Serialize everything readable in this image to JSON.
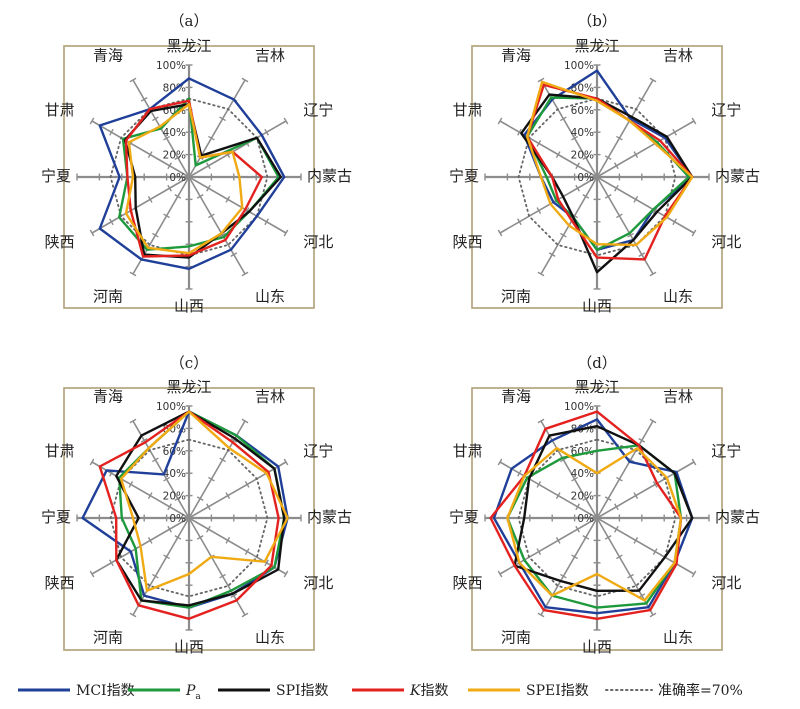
{
  "chart_data": {
    "type": "radar",
    "panels": [
      {
        "label": "（a）",
        "series_values": {
          "mci": [
            88,
            80,
            75,
            85,
            70,
            75,
            82,
            85,
            92,
            62,
            92,
            70
          ],
          "pa": [
            70,
            12,
            70,
            80,
            62,
            62,
            62,
            75,
            72,
            55,
            68,
            50
          ],
          "spi": [
            65,
            22,
            70,
            82,
            62,
            58,
            72,
            80,
            55,
            48,
            66,
            68
          ],
          "k": [
            68,
            20,
            45,
            65,
            58,
            65,
            70,
            82,
            60,
            55,
            65,
            70
          ],
          "spei": [
            65,
            20,
            45,
            45,
            55,
            58,
            68,
            73,
            65,
            50,
            62,
            52
          ]
        }
      },
      {
        "label": "（b）",
        "series_values": {
          "mci": [
            95,
            60,
            70,
            85,
            58,
            65,
            65,
            42,
            45,
            50,
            75,
            80
          ],
          "pa": [
            70,
            58,
            62,
            82,
            58,
            58,
            65,
            42,
            42,
            45,
            72,
            82
          ],
          "spi": [
            70,
            62,
            72,
            85,
            62,
            65,
            85,
            42,
            35,
            40,
            78,
            85
          ],
          "k": [
            70,
            58,
            65,
            85,
            70,
            85,
            72,
            45,
            40,
            40,
            72,
            95
          ],
          "spei": [
            68,
            58,
            60,
            85,
            72,
            70,
            60,
            50,
            48,
            50,
            72,
            98
          ]
        }
      },
      {
        "label": "（c）",
        "series_values": {
          "mci": [
            95,
            85,
            92,
            88,
            88,
            78,
            80,
            80,
            60,
            95,
            85,
            45
          ],
          "pa": [
            95,
            85,
            88,
            85,
            88,
            75,
            80,
            85,
            55,
            60,
            72,
            72
          ],
          "spi": [
            95,
            82,
            88,
            85,
            92,
            78,
            78,
            85,
            75,
            45,
            75,
            85
          ],
          "k": [
            95,
            78,
            82,
            80,
            85,
            85,
            90,
            90,
            75,
            65,
            92,
            78
          ],
          "spei": [
            95,
            72,
            80,
            88,
            78,
            40,
            50,
            75,
            50,
            50,
            70,
            72
          ]
        }
      },
      {
        "label": "（d）",
        "series_values": {
          "mci": [
            88,
            58,
            82,
            85,
            80,
            92,
            85,
            92,
            80,
            92,
            88,
            80
          ],
          "pa": [
            60,
            75,
            80,
            75,
            80,
            88,
            80,
            80,
            75,
            80,
            72,
            62
          ],
          "spi": [
            82,
            75,
            80,
            85,
            70,
            75,
            65,
            65,
            85,
            65,
            70,
            85
          ],
          "k": [
            95,
            75,
            62,
            75,
            82,
            95,
            90,
            95,
            85,
            95,
            75,
            92
          ],
          "spei": [
            40,
            72,
            72,
            75,
            80,
            85,
            50,
            80,
            80,
            80,
            75,
            72
          ]
        }
      }
    ],
    "axes": [
      "黑龙江",
      "吉林",
      "辽宁",
      "内蒙古",
      "河北",
      "山东",
      "山西",
      "河南",
      "陕西",
      "宁夏",
      "甘肃",
      "青海"
    ],
    "ticks": [
      "0%",
      "20%",
      "40%",
      "60%",
      "80%",
      "100%"
    ],
    "range": [
      0,
      100
    ],
    "threshold": 70,
    "series": [
      {
        "key": "mci",
        "name": "MCI指数",
        "color": "#1f3f99"
      },
      {
        "key": "pa",
        "name": "P",
        "sub": "a",
        "color": "#1e9a3c"
      },
      {
        "key": "spi",
        "name": "SPI指数",
        "color": "#111111"
      },
      {
        "key": "k",
        "name": "指数",
        "prefix": "K",
        "color": "#e3211f"
      },
      {
        "key": "spei",
        "name": "SPEI指数",
        "color": "#f0aa14"
      }
    ],
    "threshold_legend": "准确率=70%",
    "threshold_color": "#666666",
    "grid_color": "#8c8c8c",
    "frame_color": "#b7aa85"
  }
}
